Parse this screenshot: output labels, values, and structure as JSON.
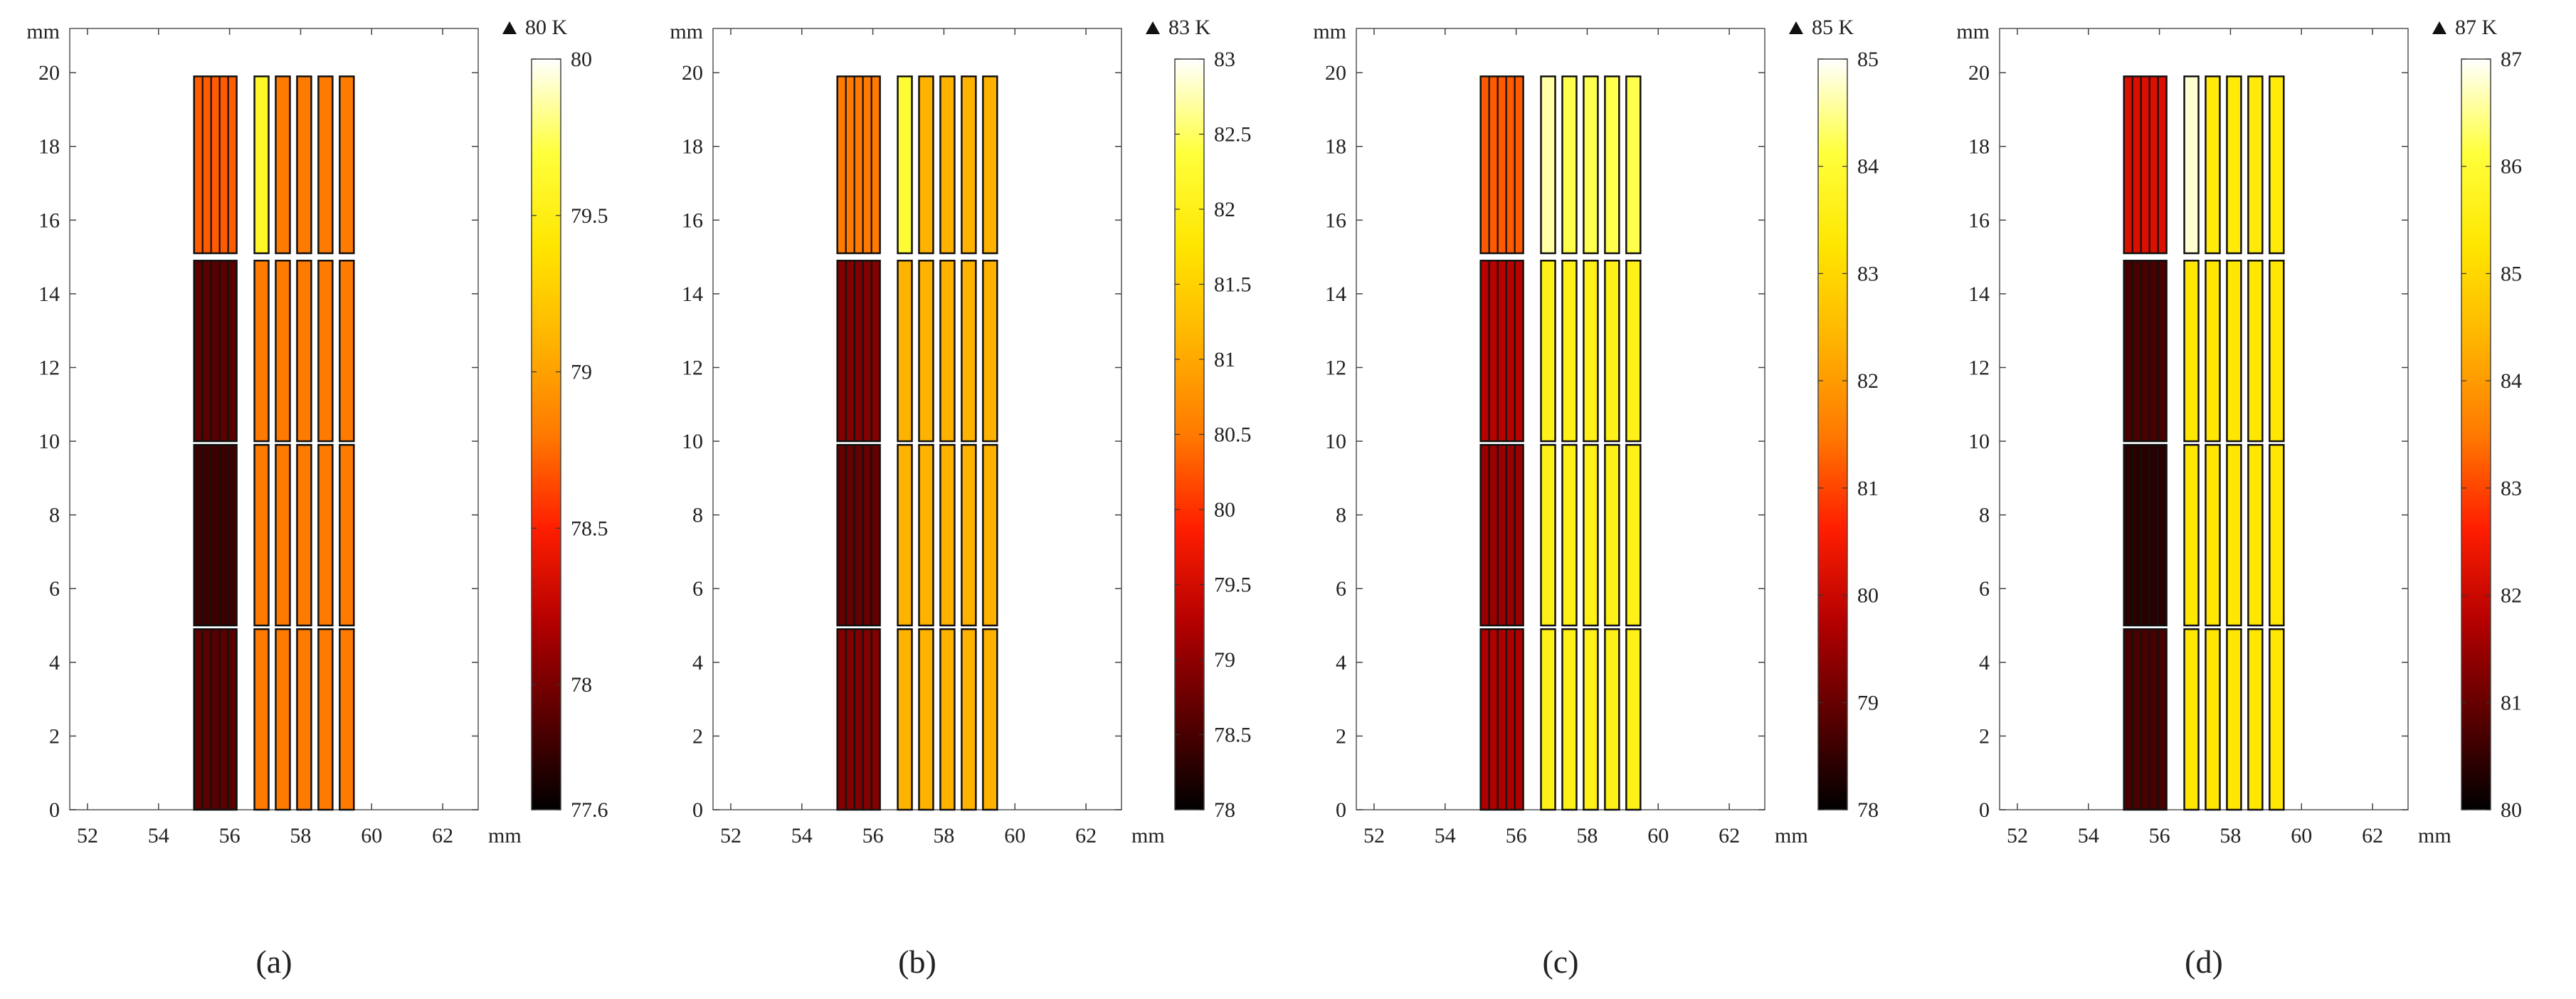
{
  "figure": {
    "colormap": "heat",
    "colormap_stops": [
      "#000000",
      "#5a0000",
      "#b40000",
      "#ff1e00",
      "#ff7a00",
      "#ffb400",
      "#ffe600",
      "#ffff3c",
      "#ffffff"
    ]
  },
  "chart_data": [
    {
      "type": "heatmap",
      "caption": "(a)",
      "x_unit": "mm",
      "y_unit": "mm",
      "xlim": [
        51.5,
        63
      ],
      "ylim": [
        0,
        21.2
      ],
      "x_ticks": [
        52,
        54,
        56,
        58,
        60,
        62
      ],
      "y_ticks": [
        0,
        2,
        4,
        6,
        8,
        10,
        12,
        14,
        16,
        18,
        20
      ],
      "x_tick_labels": [
        "52",
        "54",
        "56",
        "58",
        "60",
        "62"
      ],
      "y_tick_labels": [
        "0",
        "2",
        "4",
        "6",
        "8",
        "10",
        "12",
        "14",
        "16",
        "18",
        "20"
      ],
      "colorbar": {
        "title": "80 K",
        "min": 77.6,
        "max": 80,
        "ticks": [
          77.6,
          78,
          78.5,
          79,
          79.5,
          80
        ],
        "tick_labels": [
          "77.6",
          "78",
          "78.5",
          "79",
          "79.5",
          "80"
        ]
      },
      "segments": [
        {
          "y_range": [
            0,
            4.9
          ],
          "dense_temp": 77.9,
          "bar_temps": [
            78.8,
            78.8,
            78.8,
            78.8,
            78.8
          ]
        },
        {
          "y_range": [
            5.0,
            9.9
          ],
          "dense_temp": 77.8,
          "bar_temps": [
            78.8,
            78.8,
            78.8,
            78.8,
            78.8
          ]
        },
        {
          "y_range": [
            10.0,
            14.9
          ],
          "dense_temp": 77.9,
          "bar_temps": [
            78.8,
            78.8,
            78.8,
            78.8,
            78.8
          ]
        },
        {
          "y_range": [
            15.1,
            19.9
          ],
          "dense_temp": 78.7,
          "bar_temps": [
            79.6,
            78.8,
            78.8,
            78.8,
            78.8
          ]
        }
      ]
    },
    {
      "type": "heatmap",
      "caption": "(b)",
      "x_unit": "mm",
      "y_unit": "mm",
      "xlim": [
        51.5,
        63
      ],
      "ylim": [
        0,
        21.2
      ],
      "x_ticks": [
        52,
        54,
        56,
        58,
        60,
        62
      ],
      "y_ticks": [
        0,
        2,
        4,
        6,
        8,
        10,
        12,
        14,
        16,
        18,
        20
      ],
      "x_tick_labels": [
        "52",
        "54",
        "56",
        "58",
        "60",
        "62"
      ],
      "y_tick_labels": [
        "0",
        "2",
        "4",
        "6",
        "8",
        "10",
        "12",
        "14",
        "16",
        "18",
        "20"
      ],
      "colorbar": {
        "title": "83 K",
        "min": 78,
        "max": 83,
        "ticks": [
          78,
          78.5,
          79,
          79.5,
          80,
          80.5,
          81,
          81.5,
          82,
          82.5,
          83
        ],
        "tick_labels": [
          "78",
          "78.5",
          "79",
          "79.5",
          "80",
          "80.5",
          "81",
          "81.5",
          "82",
          "82.5",
          "83"
        ]
      },
      "segments": [
        {
          "y_range": [
            0,
            4.9
          ],
          "dense_temp": 78.9,
          "bar_temps": [
            81.1,
            81.1,
            81.1,
            81.1,
            81.1
          ]
        },
        {
          "y_range": [
            5.0,
            9.9
          ],
          "dense_temp": 78.7,
          "bar_temps": [
            81.1,
            81.1,
            81.1,
            81.1,
            81.1
          ]
        },
        {
          "y_range": [
            10.0,
            14.9
          ],
          "dense_temp": 78.9,
          "bar_temps": [
            81.1,
            81.1,
            81.1,
            81.1,
            81.1
          ]
        },
        {
          "y_range": [
            15.1,
            19.9
          ],
          "dense_temp": 80.5,
          "bar_temps": [
            82.3,
            81.1,
            81.1,
            81.1,
            81.1
          ]
        }
      ]
    },
    {
      "type": "heatmap",
      "caption": "(c)",
      "x_unit": "mm",
      "y_unit": "mm",
      "xlim": [
        51.5,
        63
      ],
      "ylim": [
        0,
        21.2
      ],
      "x_ticks": [
        52,
        54,
        56,
        58,
        60,
        62
      ],
      "y_ticks": [
        0,
        2,
        4,
        6,
        8,
        10,
        12,
        14,
        16,
        18,
        20
      ],
      "x_tick_labels": [
        "52",
        "54",
        "56",
        "58",
        "60",
        "62"
      ],
      "y_tick_labels": [
        "0",
        "2",
        "4",
        "6",
        "8",
        "10",
        "12",
        "14",
        "16",
        "18",
        "20"
      ],
      "colorbar": {
        "title": "85 K",
        "min": 78,
        "max": 85,
        "ticks": [
          78,
          79,
          80,
          81,
          82,
          83,
          84,
          85
        ],
        "tick_labels": [
          "78",
          "79",
          "80",
          "81",
          "82",
          "83",
          "84",
          "85"
        ]
      },
      "segments": [
        {
          "y_range": [
            0,
            4.9
          ],
          "dense_temp": 79.7,
          "bar_temps": [
            83.6,
            83.6,
            83.6,
            83.6,
            83.6
          ]
        },
        {
          "y_range": [
            5.0,
            9.9
          ],
          "dense_temp": 79.5,
          "bar_temps": [
            83.6,
            83.6,
            83.6,
            83.6,
            83.6
          ]
        },
        {
          "y_range": [
            10.0,
            14.9
          ],
          "dense_temp": 79.8,
          "bar_temps": [
            83.6,
            83.6,
            83.6,
            83.6,
            83.6
          ]
        },
        {
          "y_range": [
            15.1,
            19.9
          ],
          "dense_temp": 81.2,
          "bar_temps": [
            84.6,
            84.2,
            84.2,
            84.2,
            84.2
          ]
        }
      ]
    },
    {
      "type": "heatmap",
      "caption": "(d)",
      "x_unit": "mm",
      "y_unit": "mm",
      "xlim": [
        51.5,
        63
      ],
      "ylim": [
        0,
        21.2
      ],
      "x_ticks": [
        52,
        54,
        56,
        58,
        60,
        62
      ],
      "y_ticks": [
        0,
        2,
        4,
        6,
        8,
        10,
        12,
        14,
        16,
        18,
        20
      ],
      "x_tick_labels": [
        "52",
        "54",
        "56",
        "58",
        "60",
        "62"
      ],
      "y_tick_labels": [
        "0",
        "2",
        "4",
        "6",
        "8",
        "10",
        "12",
        "14",
        "16",
        "18",
        "20"
      ],
      "colorbar": {
        "title": "87 K",
        "min": 80,
        "max": 87,
        "ticks": [
          80,
          81,
          82,
          83,
          84,
          85,
          86,
          87
        ],
        "tick_labels": [
          "80",
          "81",
          "82",
          "83",
          "84",
          "85",
          "86",
          "87"
        ]
      },
      "segments": [
        {
          "y_range": [
            0,
            4.9
          ],
          "dense_temp": 80.7,
          "bar_temps": [
            85.3,
            85.3,
            85.3,
            85.3,
            85.3
          ]
        },
        {
          "y_range": [
            5.0,
            9.9
          ],
          "dense_temp": 80.4,
          "bar_temps": [
            85.3,
            85.3,
            85.3,
            85.3,
            85.3
          ]
        },
        {
          "y_range": [
            10.0,
            14.9
          ],
          "dense_temp": 80.7,
          "bar_temps": [
            85.3,
            85.3,
            85.3,
            85.3,
            85.3
          ]
        },
        {
          "y_range": [
            15.1,
            19.9
          ],
          "dense_temp": 82.2,
          "bar_temps": [
            86.8,
            85.4,
            85.4,
            85.4,
            85.4
          ]
        }
      ]
    }
  ]
}
